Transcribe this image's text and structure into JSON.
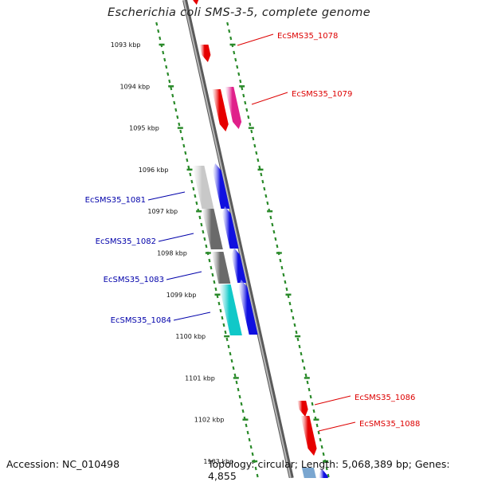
{
  "title": "Escherichia coli SMS-3-5, complete genome",
  "footer": {
    "accession": "Accession: NC_010498",
    "summary": "Topology: circular; Length: 5,068,389 bp; Genes: 4,855"
  },
  "axis_ticks": [
    "1093 kbp",
    "1094 kbp",
    "1095 kbp",
    "1096 kbp",
    "1097 kbp",
    "1098 kbp",
    "1099 kbp",
    "1100 kbp",
    "1101 kbp",
    "1102 kbp",
    "1103 kbp"
  ],
  "genes_forward_labels": [
    {
      "id": "EcSMS35_1078",
      "color": "#dd0000"
    },
    {
      "id": "EcSMS35_1079",
      "color": "#dd0000"
    },
    {
      "id": "EcSMS35_1086",
      "color": "#dd0000"
    },
    {
      "id": "EcSMS35_1088",
      "color": "#dd0000"
    }
  ],
  "genes_reverse_labels": [
    {
      "id": "EcSMS35_1081",
      "color": "#0000aa"
    },
    {
      "id": "EcSMS35_1082",
      "color": "#0000aa"
    },
    {
      "id": "EcSMS35_1083",
      "color": "#0000aa"
    },
    {
      "id": "EcSMS35_1084",
      "color": "#0000aa"
    }
  ],
  "colors": {
    "tick": "#2a8a2a",
    "backbone": "#888888",
    "red": "#e60000",
    "magenta": "#e0208a",
    "blue": "#1010e0",
    "cyan": "#10c8c8",
    "gray_light": "#c8c8c8",
    "gray_dark": "#6a6a6a"
  }
}
